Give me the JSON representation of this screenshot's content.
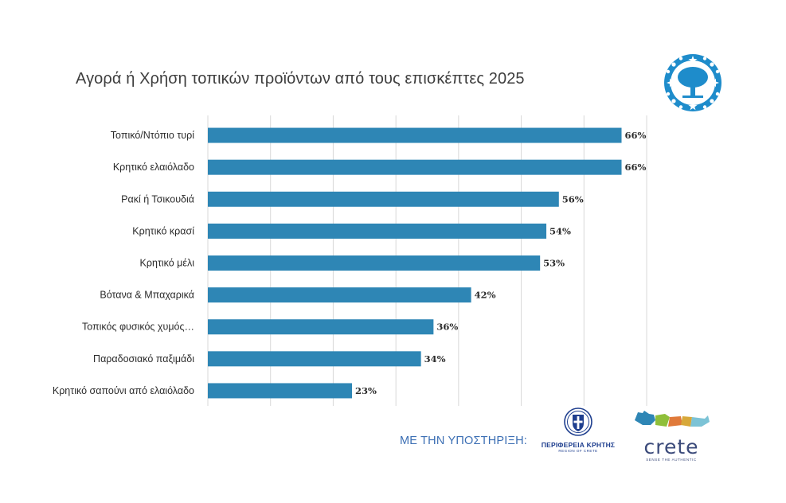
{
  "chart_data": {
    "type": "bar",
    "orientation": "horizontal",
    "title": "Αγορά ή Χρήση τοπικών προϊόντων από τους επισκέπτες 2025",
    "categories": [
      "Τοπικό/Ντόπιο τυρί",
      "Κρητικό ελαιόλαδο",
      "Ρακί ή Τσικουδιά",
      "Κρητικό κρασί",
      "Κρητικό μέλι",
      "Βότανα & Μπαχαρικά",
      "Τοπικός φυσικός χυμός…",
      "Παραδοσιακό παξιμάδι",
      "Κρητικό σαπούνι από ελαιόλαδο"
    ],
    "values": [
      66,
      66,
      56,
      54,
      53,
      42,
      36,
      34,
      23
    ],
    "value_labels": [
      "66%",
      "66%",
      "56%",
      "54%",
      "53%",
      "42%",
      "36%",
      "34%",
      "23%"
    ],
    "xlim": [
      0,
      70
    ],
    "gridlines": true,
    "bar_color": "#2e86b5"
  },
  "footer": {
    "support_text": "ΜΕ ΤΗΝ ΥΠΟΣΤΗΡΙΞΗ:",
    "region_name": "ΠΕΡΙΦΕΡΕΙΑ ΚΡΗΤΗΣ",
    "region_subtitle": "REGION OF CRETE",
    "brand_word": "crete",
    "brand_tagline": "SENSE THE AUTHENTIC"
  },
  "icons": {
    "top_logo": "olive-tree-stars-emblem-icon",
    "region_logo": "greek-coat-of-arms-icon",
    "brand_logo": "crete-island-shape-icon"
  },
  "colors": {
    "logo_blue": "#1e8ccb",
    "support_text": "#3c6fb4",
    "region_text": "#1f3f8f"
  }
}
